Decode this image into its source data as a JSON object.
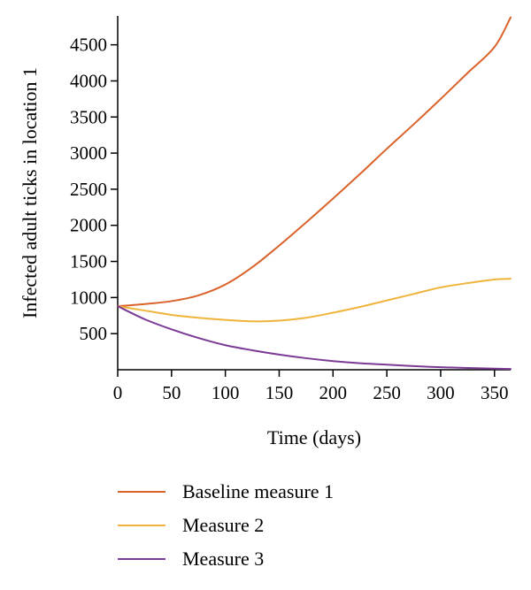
{
  "chart_data": {
    "type": "line",
    "title": "",
    "xlabel": "Time (days)",
    "ylabel": "Infected adult ticks in location 1",
    "xlim": [
      0,
      365
    ],
    "ylim": [
      0,
      4900
    ],
    "xticks": [
      0,
      50,
      100,
      150,
      200,
      250,
      300,
      350
    ],
    "yticks": [
      500,
      1000,
      1500,
      2000,
      2500,
      3000,
      3500,
      4000,
      4500
    ],
    "grid": false,
    "legend_position": "bottom",
    "series": [
      {
        "name": "Baseline measure 1",
        "color": "#d9632b",
        "x": [
          0,
          25,
          50,
          75,
          100,
          125,
          150,
          175,
          200,
          225,
          250,
          275,
          300,
          325,
          350,
          365
        ],
        "y": [
          880,
          910,
          950,
          1030,
          1180,
          1420,
          1720,
          2040,
          2370,
          2710,
          3060,
          3400,
          3750,
          4110,
          4470,
          4880
        ]
      },
      {
        "name": "Measure 2",
        "color": "#f0b43c",
        "x": [
          0,
          25,
          50,
          75,
          100,
          125,
          150,
          175,
          200,
          225,
          250,
          275,
          300,
          325,
          350,
          365
        ],
        "y": [
          880,
          820,
          760,
          720,
          690,
          670,
          680,
          720,
          790,
          870,
          960,
          1050,
          1140,
          1200,
          1250,
          1260
        ]
      },
      {
        "name": "Measure 3",
        "color": "#7b3a96",
        "x": [
          0,
          25,
          50,
          75,
          100,
          125,
          150,
          175,
          200,
          225,
          250,
          275,
          300,
          325,
          350,
          365
        ],
        "y": [
          880,
          700,
          560,
          440,
          340,
          270,
          210,
          160,
          120,
          90,
          70,
          50,
          35,
          25,
          15,
          10
        ]
      }
    ]
  }
}
